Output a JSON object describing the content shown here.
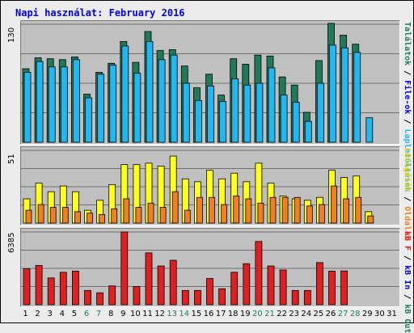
{
  "title": "Napi használat: February 2016",
  "colors": {
    "talalatok": "#1f7a5c",
    "file_ok": "#20b8f0",
    "lapletoltes": "#ffff20",
    "oldalak": "#f08020",
    "kb_forgalom": "#e02020",
    "grid": "#707070",
    "weekend_label": "#1f7a5c",
    "weekday_label": "#000000"
  },
  "chart_data": [
    {
      "type": "bar",
      "name": "hits-files",
      "ymax_label": "130",
      "ylim": [
        0,
        130
      ],
      "grid": true,
      "series": [
        {
          "name": "Találatok",
          "color": "#1f7a5c",
          "values": [
            81,
            93,
            92,
            91,
            94,
            53,
            77,
            87,
            111,
            88,
            122,
            101,
            102,
            84,
            60,
            75,
            52,
            92,
            86,
            96,
            95,
            72,
            63,
            33,
            90,
            131,
            118,
            108,
            0,
            0,
            0
          ]
        },
        {
          "name": "File-ok",
          "color": "#20b8f0",
          "values": [
            77,
            89,
            83,
            83,
            91,
            49,
            75,
            85,
            106,
            76,
            111,
            91,
            96,
            65,
            46,
            62,
            45,
            70,
            63,
            65,
            82,
            52,
            44,
            23,
            65,
            107,
            104,
            99,
            27,
            0,
            0
          ]
        }
      ]
    },
    {
      "type": "bar",
      "name": "pages-visits",
      "ymax_label": "51",
      "ylim": [
        0,
        51
      ],
      "grid": true,
      "series": [
        {
          "name": "Látogatók",
          "color": "#ffff20",
          "values": [
            17,
            28,
            22,
            26,
            22,
            9,
            16,
            27,
            41,
            41,
            42,
            40,
            47,
            31,
            29,
            37,
            31,
            35,
            29,
            42,
            28,
            19,
            17,
            16,
            18,
            37,
            32,
            33,
            8,
            0,
            0
          ]
        },
        {
          "name": "Oldalak",
          "color": "#f08020",
          "values": [
            9,
            13,
            11,
            11,
            8,
            7,
            6,
            10,
            17,
            11,
            14,
            11,
            22,
            9,
            18,
            18,
            13,
            19,
            17,
            14,
            18,
            18,
            18,
            12,
            13,
            26,
            17,
            18,
            5,
            0,
            0
          ]
        }
      ]
    },
    {
      "type": "bar",
      "name": "kb",
      "ymax_label": "6385",
      "ylim": [
        0,
        6385
      ],
      "grid": true,
      "series": [
        {
          "name": "kB F",
          "color": "#e02020",
          "values": [
            3150,
            3450,
            2350,
            2850,
            2950,
            1250,
            1050,
            1650,
            6385,
            1600,
            4550,
            3400,
            3900,
            1250,
            1250,
            2300,
            1400,
            2850,
            3600,
            5550,
            3400,
            3050,
            1250,
            1250,
            3700,
            2950,
            2960,
            0,
            0,
            0,
            0
          ]
        }
      ]
    }
  ],
  "x_axis": {
    "days": [
      "1",
      "2",
      "3",
      "4",
      "5",
      "6",
      "7",
      "8",
      "9",
      "10",
      "11",
      "12",
      "13",
      "14",
      "15",
      "16",
      "17",
      "18",
      "19",
      "20",
      "21",
      "22",
      "23",
      "24",
      "25",
      "26",
      "27",
      "28",
      "29",
      "30",
      "31"
    ],
    "weekend_days": [
      "6",
      "7",
      "13",
      "14",
      "20",
      "21",
      "27",
      "28"
    ]
  },
  "right_legend": {
    "top": [
      {
        "text": "Találatok",
        "color": "#1f7a5c"
      },
      {
        "text": " / ",
        "color": "#000000"
      },
      {
        "text": "File-ok",
        "color": "#0000e0"
      },
      {
        "text": " / ",
        "color": "#000000"
      },
      {
        "text": "Lapletöltések",
        "color": "#20b8f0"
      }
    ],
    "middle": [
      {
        "text": "Látogatók",
        "color": "#e0d000"
      },
      {
        "text": " / ",
        "color": "#000000"
      },
      {
        "text": "Oldalak",
        "color": "#f08020"
      }
    ],
    "bottom": [
      {
        "text": "kB F",
        "color": "#e02020"
      },
      {
        "text": " / ",
        "color": "#000000"
      },
      {
        "text": "kB In",
        "color": "#0000e0"
      },
      {
        "text": " / ",
        "color": "#000000"
      },
      {
        "text": "kB Out",
        "color": "#1f7a5c"
      }
    ]
  }
}
